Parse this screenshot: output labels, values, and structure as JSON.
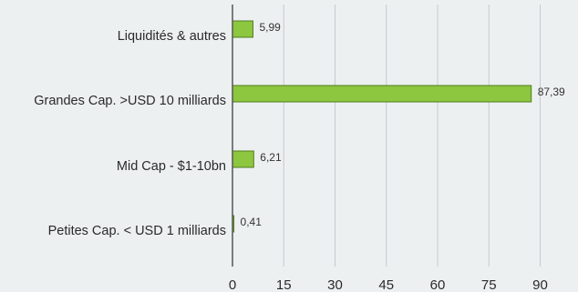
{
  "chart_data": {
    "type": "bar",
    "orientation": "horizontal",
    "title": "",
    "xlabel": "",
    "ylabel": "",
    "categories": [
      "Liquidités & autres",
      "Grandes Cap. >USD 10 milliards",
      "Mid Cap - $1-10bn",
      "Petites Cap. < USD 1 milliards"
    ],
    "values": [
      5.99,
      87.39,
      6.21,
      0.41
    ],
    "value_labels": [
      "5,99",
      "87,39",
      "6,21",
      "0,41"
    ],
    "xlim": [
      0,
      100
    ],
    "xticks": [
      0,
      15,
      30,
      45,
      60,
      75,
      90
    ],
    "xtick_labels": [
      "0",
      "15",
      "30",
      "45",
      "60",
      "75",
      "90"
    ],
    "grid": true,
    "legend": "none",
    "colors": {
      "background": "#edf0f1",
      "bar_fill": "#8dc63f",
      "bar_stroke": "#4f7d1e",
      "grid": "#c6cacc",
      "axis": "#555555"
    }
  }
}
